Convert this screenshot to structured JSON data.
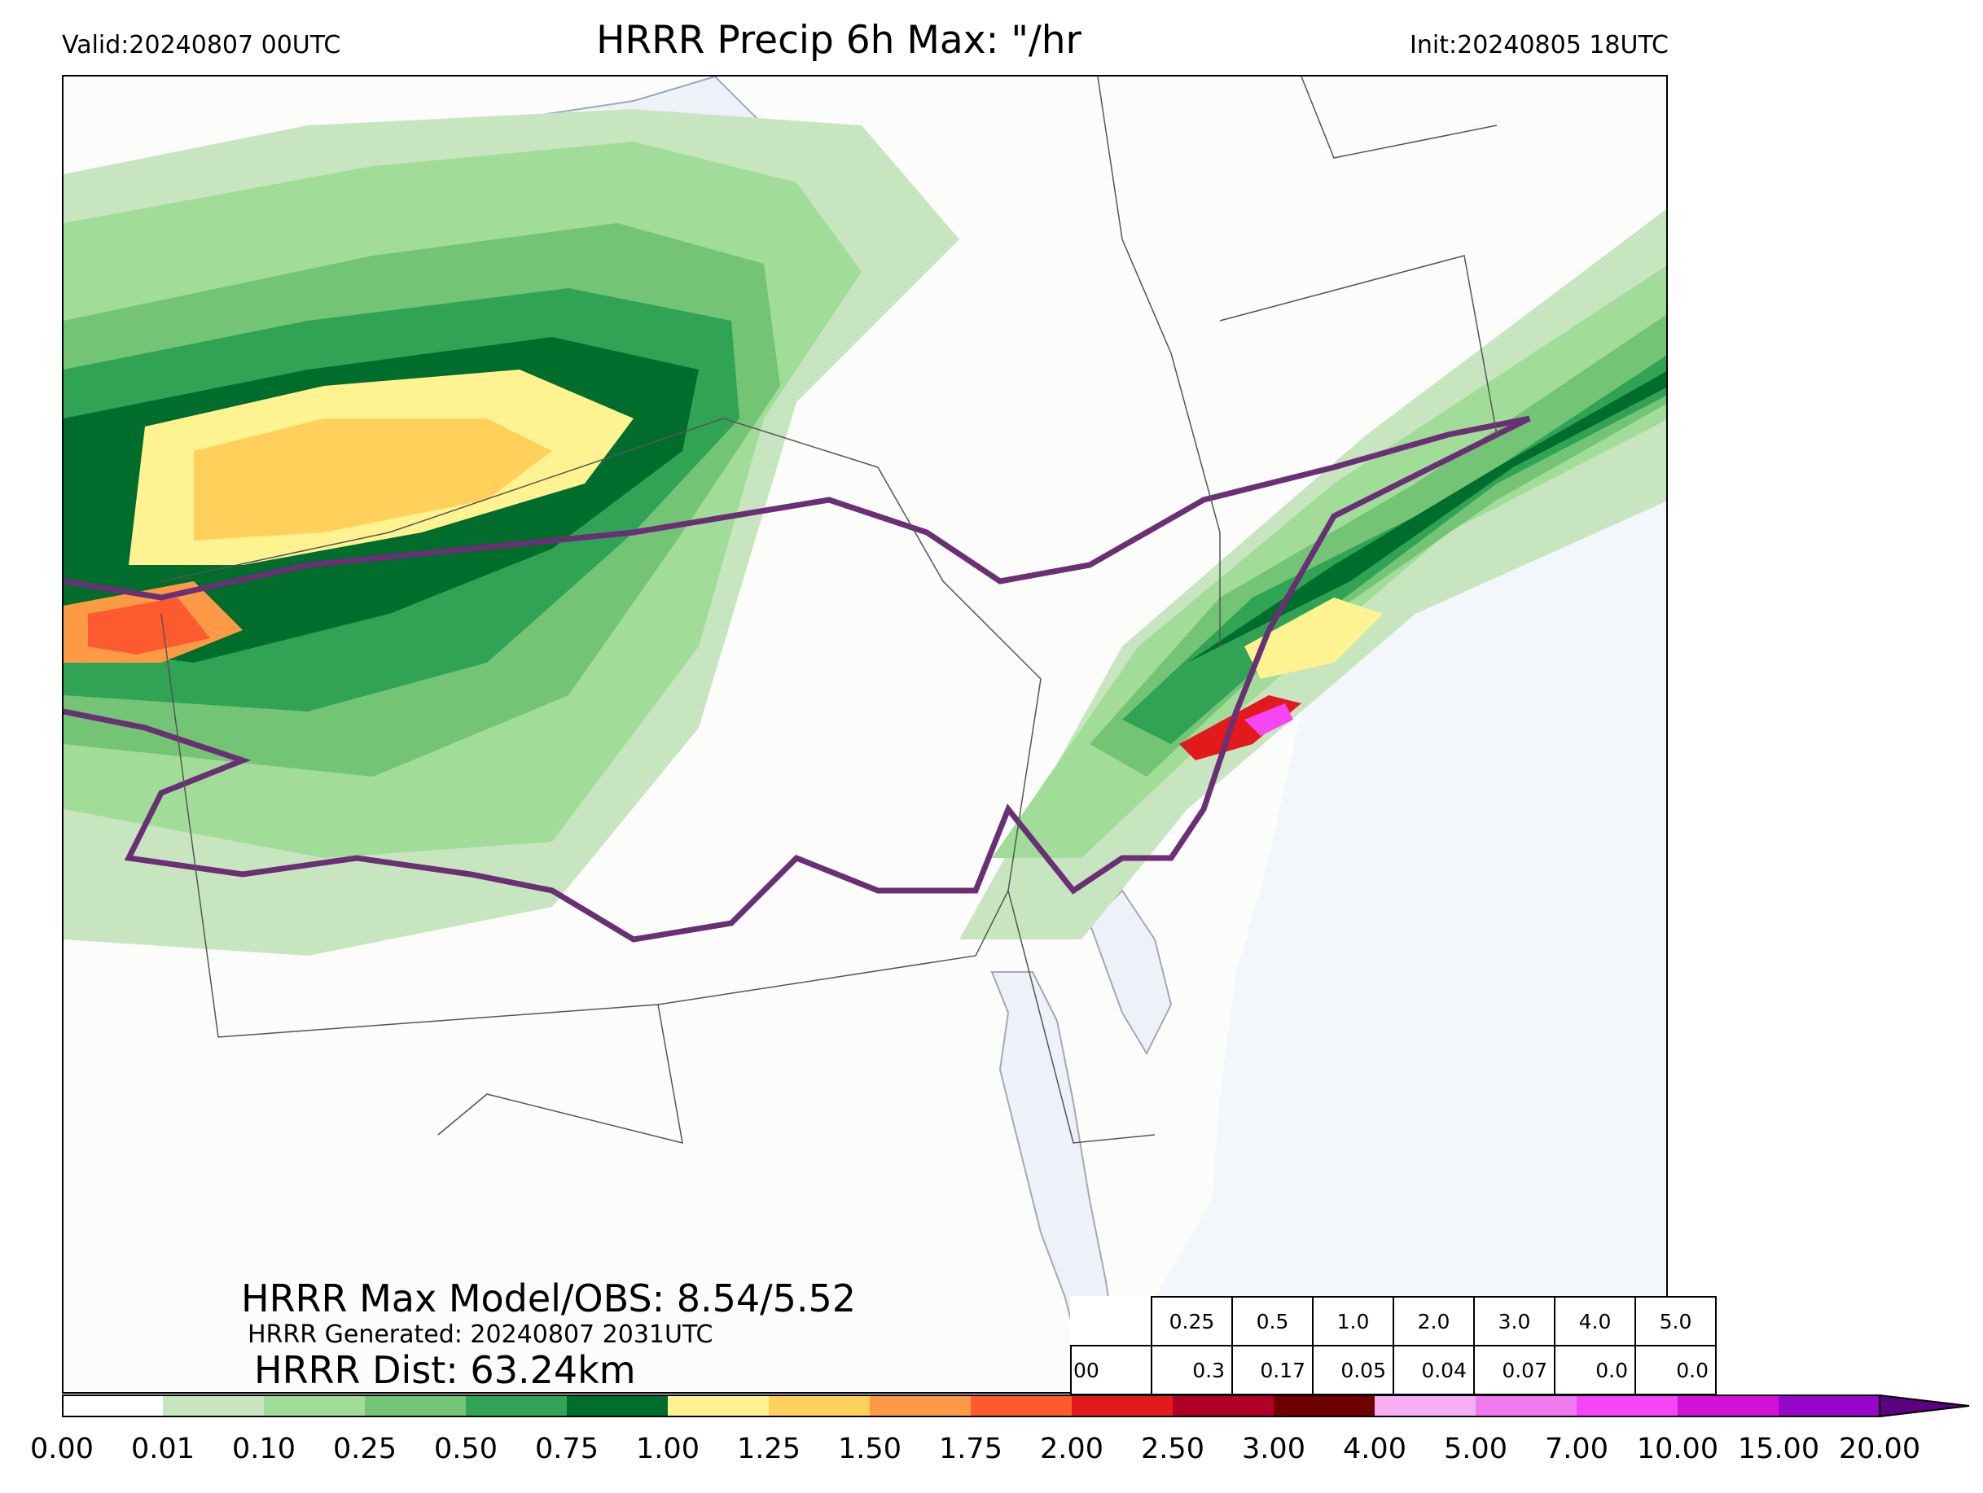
{
  "header": {
    "valid": "Valid:20240807 00UTC",
    "title": "HRRR Precip 6h Max: \"/hr",
    "init": "Init:20240805 18UTC"
  },
  "stats": {
    "max_model_obs": "HRRR Max Model/OBS: 8.54/5.52",
    "generated": "HRRR Generated: 20240807 2031UTC",
    "distance": "HRRR Dist: 63.24km"
  },
  "prob_table": {
    "thresholds": [
      "0.25",
      "0.5",
      "1.0",
      "2.0",
      "3.0",
      "4.0",
      "5.0"
    ],
    "first_value_fragment": "00",
    "values": [
      "0.3",
      "0.17",
      "0.05",
      "0.04",
      "0.07",
      "0.0",
      "0.0"
    ]
  },
  "colorbar": {
    "ticks": [
      "0.00",
      "0.01",
      "0.10",
      "0.25",
      "0.50",
      "0.75",
      "1.00",
      "1.25",
      "1.50",
      "1.75",
      "2.00",
      "2.50",
      "3.00",
      "4.00",
      "5.00",
      "7.00",
      "10.00",
      "15.00",
      "20.00"
    ],
    "colors": [
      "#ffffff",
      "#c7e6c0",
      "#a1dc98",
      "#74c476",
      "#31a354",
      "#006d2c",
      "#fff391",
      "#ffd15a",
      "#fe9a45",
      "#fd5a2f",
      "#e31a1c",
      "#b10026",
      "#6f0000",
      "#f7aef5",
      "#f179f0",
      "#f545f5",
      "#d212d8",
      "#9607c9"
    ],
    "extend_color": "#5a0080"
  },
  "map": {
    "land_color": "#fcfcfb",
    "water_color": "#f3f6fb",
    "contour_color": "#6a2f75"
  }
}
